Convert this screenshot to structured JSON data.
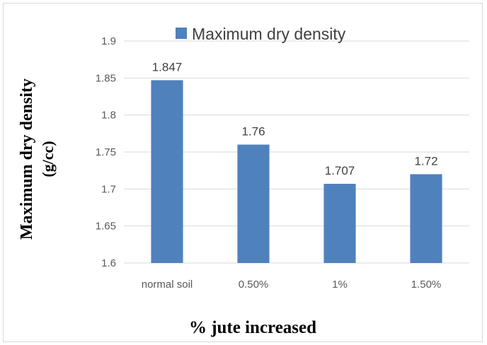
{
  "chart_data": {
    "type": "bar",
    "categories": [
      "normal soil",
      "0.50%",
      "1%",
      "1.50%"
    ],
    "series": [
      {
        "name": "Maximum dry density",
        "values": [
          1.847,
          1.76,
          1.707,
          1.72
        ],
        "color": "#4f81bd"
      }
    ],
    "data_labels": [
      "1.847",
      "1.76",
      "1.707",
      "1.72"
    ],
    "xlabel": "% jute increased",
    "ylabel_line1": "Maximum dry density",
    "ylabel_line2": "(g/cc)",
    "ylim": [
      1.6,
      1.9
    ],
    "yticks": [
      "1.6",
      "1.65",
      "1.7",
      "1.75",
      "1.8",
      "1.85",
      "1.9"
    ],
    "ytick_values": [
      1.6,
      1.65,
      1.7,
      1.75,
      1.8,
      1.85,
      1.9
    ],
    "grid": true,
    "legend_position": "top"
  }
}
